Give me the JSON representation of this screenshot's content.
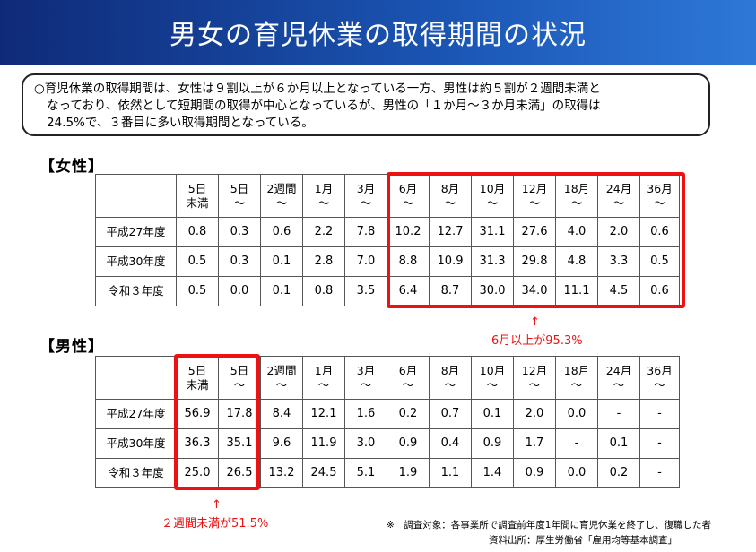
{
  "title": "男女の育児休業の取得期間の状況",
  "summary": {
    "line1": "○育児休業の取得期間は、女性は９割以上が６か月以上となっている一方、男性は約５割が２週間未満と",
    "line2": "なっており、依然として短期間の取得が中心となっているが、男性の「１か月～３か月未満」の取得は",
    "line3": "24.5%で、３番目に多い取得期間となっている。"
  },
  "female": {
    "label": "【女性】",
    "columns": [
      {
        "l1": "5日",
        "l2": "未満"
      },
      {
        "l1": "5日",
        "l2": "～"
      },
      {
        "l1": "2週間",
        "l2": "～"
      },
      {
        "l1": "1月",
        "l2": "～"
      },
      {
        "l1": "3月",
        "l2": "～"
      },
      {
        "l1": "6月",
        "l2": "～"
      },
      {
        "l1": "8月",
        "l2": "～"
      },
      {
        "l1": "10月",
        "l2": "～"
      },
      {
        "l1": "12月",
        "l2": "～"
      },
      {
        "l1": "18月",
        "l2": "～"
      },
      {
        "l1": "24月",
        "l2": "～"
      },
      {
        "l1": "36月",
        "l2": "～"
      }
    ],
    "rows": [
      {
        "label": "平成27年度",
        "values": [
          "0.8",
          "0.3",
          "0.6",
          "2.2",
          "7.8",
          "10.2",
          "12.7",
          "31.1",
          "27.6",
          "4.0",
          "2.0",
          "0.6"
        ]
      },
      {
        "label": "平成30年度",
        "values": [
          "0.5",
          "0.3",
          "0.1",
          "2.8",
          "7.0",
          "8.8",
          "10.9",
          "31.3",
          "29.8",
          "4.8",
          "3.3",
          "0.5"
        ]
      },
      {
        "label": "令和３年度",
        "values": [
          "0.5",
          "0.0",
          "0.1",
          "0.8",
          "3.5",
          "6.4",
          "8.7",
          "30.0",
          "34.0",
          "11.1",
          "4.5",
          "0.6"
        ]
      }
    ],
    "arrow": "↑",
    "highlight": "6月以上が95.3%"
  },
  "male": {
    "label": "【男性】",
    "columns": [
      {
        "l1": "5日",
        "l2": "未満"
      },
      {
        "l1": "5日",
        "l2": "～"
      },
      {
        "l1": "2週間",
        "l2": "～"
      },
      {
        "l1": "1月",
        "l2": "～"
      },
      {
        "l1": "3月",
        "l2": "～"
      },
      {
        "l1": "6月",
        "l2": "～"
      },
      {
        "l1": "8月",
        "l2": "～"
      },
      {
        "l1": "10月",
        "l2": "～"
      },
      {
        "l1": "12月",
        "l2": "～"
      },
      {
        "l1": "18月",
        "l2": "～"
      },
      {
        "l1": "24月",
        "l2": "～"
      },
      {
        "l1": "36月",
        "l2": "～"
      }
    ],
    "rows": [
      {
        "label": "平成27年度",
        "values": [
          "56.9",
          "17.8",
          "8.4",
          "12.1",
          "1.6",
          "0.2",
          "0.7",
          "0.1",
          "2.0",
          "0.0",
          "-",
          "-"
        ]
      },
      {
        "label": "平成30年度",
        "values": [
          "36.3",
          "35.1",
          "9.6",
          "11.9",
          "3.0",
          "0.9",
          "0.4",
          "0.9",
          "1.7",
          "-",
          "0.1",
          "-"
        ]
      },
      {
        "label": "令和３年度",
        "values": [
          "25.0",
          "26.5",
          "13.2",
          "24.5",
          "5.1",
          "1.9",
          "1.1",
          "1.4",
          "0.9",
          "0.0",
          "0.2",
          "-"
        ]
      }
    ],
    "arrow": "↑",
    "highlight": "２週間未満が51.5%"
  },
  "notes": {
    "line1": "※　調査対象：各事業所で調査前年度1年間に育児休業を終了し、復職した者",
    "line2": "資料出所：厚生労働省「雇用均等基本調査」"
  },
  "colors": {
    "header_gradient_start": "#0f2a78",
    "header_gradient_end": "#2e78d8",
    "highlight_red": "#ee1111"
  }
}
